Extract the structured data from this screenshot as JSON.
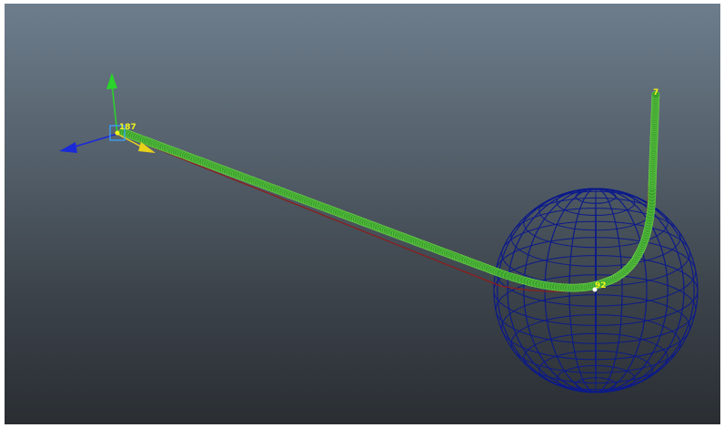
{
  "viewport": {
    "background_top": "#6d7d8c",
    "background_bottom": "#2a2e33"
  },
  "labels": {
    "start_index": "187",
    "mid_index": "92",
    "end_index": "7"
  },
  "colors": {
    "axis_y": "#2bd42b",
    "axis_x": "#1a2ad8",
    "axis_z": "#e8d21a",
    "curve_points": "#3aa12d",
    "curve_line": "#8a1e1e",
    "sphere": "#0c1a8a",
    "manipulator_box": "#3aa0ff",
    "label": "#f2f21a"
  },
  "icons": {
    "pivot": "manipulator-handle-icon",
    "y_axis": "y-axis-arrow-icon",
    "x_axis": "x-axis-arrow-icon",
    "z_axis": "z-axis-arrow-icon"
  }
}
